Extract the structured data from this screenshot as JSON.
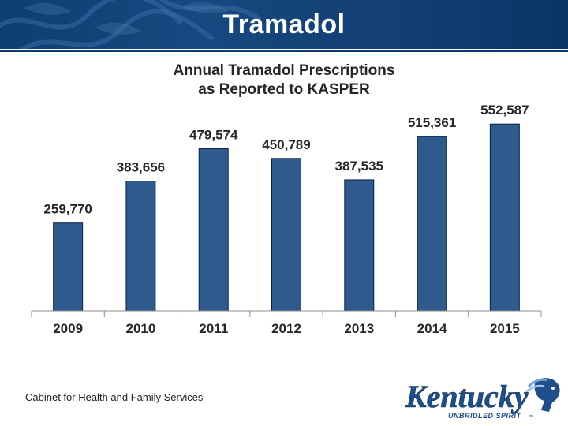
{
  "slide": {
    "title": "Tramadol",
    "footer": "Cabinet for Health and Family Services",
    "logo_word": "Kentucky",
    "logo_tagline": "UNBRIDLED SPIRIT",
    "logo_mark": "™"
  },
  "colors": {
    "header": "#123f74",
    "bar": "#2f5a8e",
    "bar_stroke": "#0b2446",
    "text": "#262626"
  },
  "chart_data": {
    "type": "bar",
    "title_lines": [
      "Annual Tramadol Prescriptions",
      "as Reported to KASPER"
    ],
    "categories": [
      "2009",
      "2010",
      "2011",
      "2012",
      "2013",
      "2014",
      "2015"
    ],
    "values": [
      259770,
      383656,
      479574,
      450789,
      387535,
      515361,
      552587
    ],
    "data_labels": [
      "259,770",
      "383,656",
      "479,574",
      "450,789",
      "387,535",
      "515,361",
      "552,587"
    ],
    "xlabel": "",
    "ylabel": "",
    "ylim": [
      0,
      700000
    ],
    "grid": false,
    "legend": false
  }
}
